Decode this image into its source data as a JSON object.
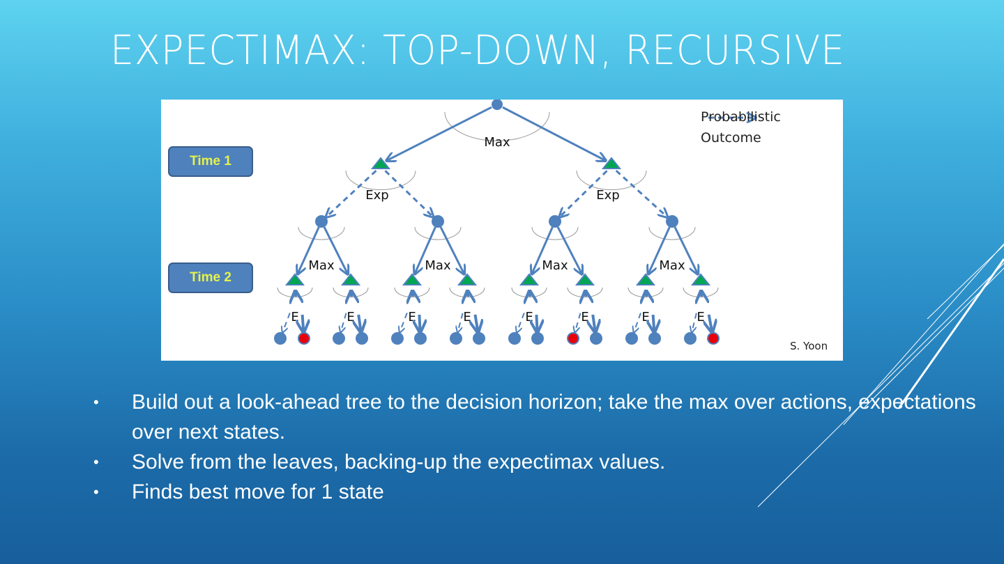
{
  "slide": {
    "title": "EXPECTIMAX: TOP-DOWN, RECURSIVE",
    "figure": {
      "time_labels": [
        "Time 1",
        "Time 2"
      ],
      "legend": {
        "line1": "Probabilistic",
        "line2": "Outcome"
      },
      "credit": "S. Yoon",
      "root_label": "Max",
      "exp_label": "Exp",
      "max_label": "Max",
      "e_label": "E",
      "colors": {
        "edge": "#4f81bd",
        "max_node": "#00a651",
        "chance_node": "#4f81bd",
        "highlight_leaf": "#e8000b"
      },
      "highlighted_leaves": [
        1,
        10,
        15
      ]
    },
    "bullets": [
      "Build out a look-ahead tree to the decision horizon; take the max over actions, expectations over next states.",
      "Solve from the leaves, backing-up the expectimax values.",
      "Finds best move for 1 state"
    ],
    "bullet_symbol": "•"
  }
}
